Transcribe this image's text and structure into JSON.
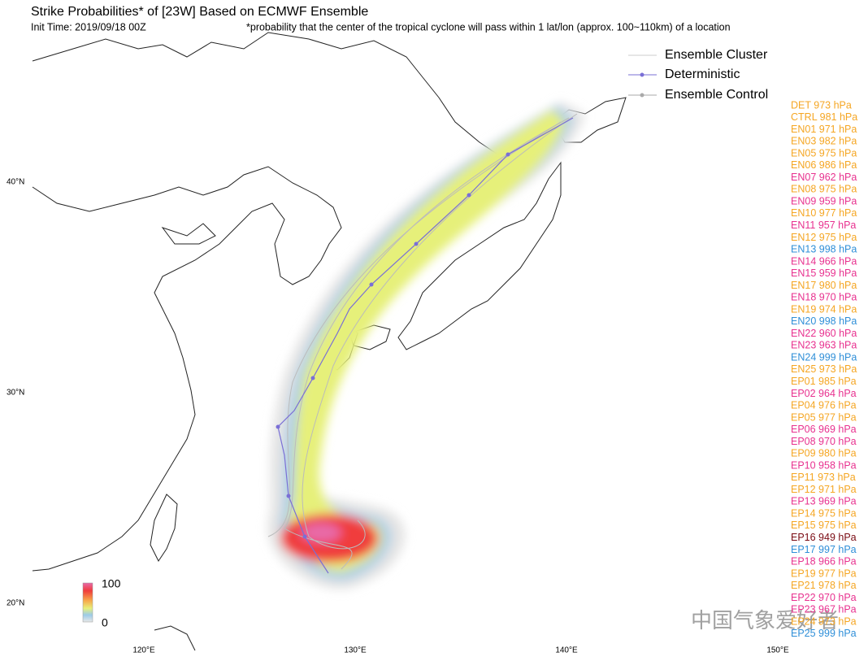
{
  "header": {
    "title": "Strike Probabilities* of [23W] Based on ECMWF Ensemble",
    "init_time": "Init Time: 2019/09/18 00Z",
    "footnote": "*probability that the center of the tropical cyclone will pass within 1 lat/lon (approx. 100~110km) of a location"
  },
  "legend": [
    "Ensemble Cluster",
    "Deterministic",
    "Ensemble Control"
  ],
  "lat_labels": [
    "40°N",
    "30°N",
    "20°N"
  ],
  "lon_labels": [
    "120°E",
    "130°E",
    "140°E",
    "150°E"
  ],
  "colorbar": {
    "max": "100",
    "min": "0"
  },
  "watermark": "中国气象爱好者",
  "palette": {
    "orange": "#f5a623",
    "pink": "#e8318f",
    "blue": "#2f8fd8",
    "darkred": "#7a0a12"
  },
  "members": [
    {
      "label": "DET 973 hPa",
      "color": "orange"
    },
    {
      "label": "CTRL 981 hPa",
      "color": "orange"
    },
    {
      "label": "EN01 971 hPa",
      "color": "orange"
    },
    {
      "label": "EN03 982 hPa",
      "color": "orange"
    },
    {
      "label": "EN05 975 hPa",
      "color": "orange"
    },
    {
      "label": "EN06 986 hPa",
      "color": "orange"
    },
    {
      "label": "EN07 962 hPa",
      "color": "pink"
    },
    {
      "label": "EN08 975 hPa",
      "color": "orange"
    },
    {
      "label": "EN09 959 hPa",
      "color": "pink"
    },
    {
      "label": "EN10 977 hPa",
      "color": "orange"
    },
    {
      "label": "EN11 957 hPa",
      "color": "pink"
    },
    {
      "label": "EN12 975 hPa",
      "color": "orange"
    },
    {
      "label": "EN13 998 hPa",
      "color": "blue"
    },
    {
      "label": "EN14 966 hPa",
      "color": "pink"
    },
    {
      "label": "EN15 959 hPa",
      "color": "pink"
    },
    {
      "label": "EN17 980 hPa",
      "color": "orange"
    },
    {
      "label": "EN18 970 hPa",
      "color": "pink"
    },
    {
      "label": "EN19 974 hPa",
      "color": "orange"
    },
    {
      "label": "EN20 998 hPa",
      "color": "blue"
    },
    {
      "label": "EN22 960 hPa",
      "color": "pink"
    },
    {
      "label": "EN23 963 hPa",
      "color": "pink"
    },
    {
      "label": "EN24 999 hPa",
      "color": "blue"
    },
    {
      "label": "EN25 973 hPa",
      "color": "orange"
    },
    {
      "label": "EP01 985 hPa",
      "color": "orange"
    },
    {
      "label": "EP02 964 hPa",
      "color": "pink"
    },
    {
      "label": "EP04 976 hPa",
      "color": "orange"
    },
    {
      "label": "EP05 977 hPa",
      "color": "orange"
    },
    {
      "label": "EP06 969 hPa",
      "color": "pink"
    },
    {
      "label": "EP08 970 hPa",
      "color": "pink"
    },
    {
      "label": "EP09 980 hPa",
      "color": "orange"
    },
    {
      "label": "EP10 958 hPa",
      "color": "pink"
    },
    {
      "label": "EP11 973 hPa",
      "color": "orange"
    },
    {
      "label": "EP12 971 hPa",
      "color": "orange"
    },
    {
      "label": "EP13 969 hPa",
      "color": "pink"
    },
    {
      "label": "EP14 975 hPa",
      "color": "orange"
    },
    {
      "label": "EP15 975 hPa",
      "color": "orange"
    },
    {
      "label": "EP16 949 hPa",
      "color": "darkred"
    },
    {
      "label": "EP17 997 hPa",
      "color": "blue"
    },
    {
      "label": "EP18 966 hPa",
      "color": "pink"
    },
    {
      "label": "EP19 977 hPa",
      "color": "orange"
    },
    {
      "label": "EP21 978 hPa",
      "color": "orange"
    },
    {
      "label": "EP22 970 hPa",
      "color": "pink"
    },
    {
      "label": "EP23 967 hPa",
      "color": "pink"
    },
    {
      "label": "EP24 973 hPa",
      "color": "orange"
    },
    {
      "label": "EP25 999 hPa",
      "color": "blue"
    }
  ]
}
